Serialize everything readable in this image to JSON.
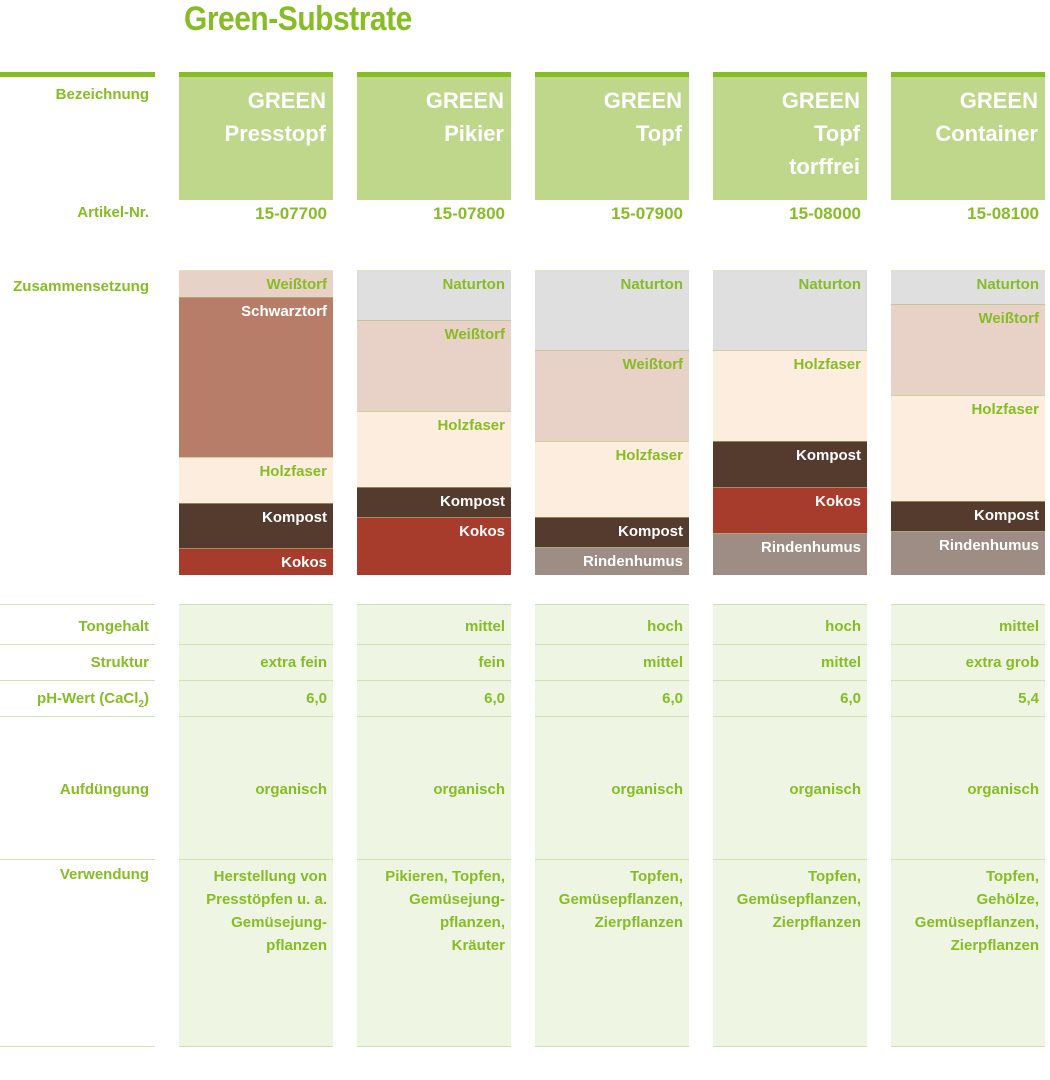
{
  "title": "Green-Substrate",
  "colors": {
    "brand_green": "#86bd24",
    "header_green": "#bfd78a",
    "property_bg": "#eef5e3",
    "Weißtorf": "#e8d1c6",
    "Schwarztorf": "#b87d69",
    "Naturton": "#dfdfdf",
    "Holzfaser": "#fdeddf",
    "Kompost": "#553b2d",
    "Kokos": "#a83c2c",
    "Rindenhumus": "#9d8d84"
  },
  "labels": {
    "bezeichnung": "Bezeichnung",
    "artikel": "Artikel-Nr.",
    "zusammensetzung": "Zusammensetzung",
    "tongehalt": "Tongehalt",
    "struktur": "Struktur",
    "ph_prefix": "pH-Wert (CaCl",
    "ph_sub": "2",
    "ph_suffix": ")",
    "aufduengung": "Aufdüngung",
    "verwendung": "Verwendung"
  },
  "products": [
    {
      "name_lines": [
        "GREEN",
        "Presstopf"
      ],
      "artikel": "15-07700",
      "composition": [
        {
          "name": "Weißtorf",
          "share": 0.086
        },
        {
          "name": "Schwarztorf",
          "share": 0.526
        },
        {
          "name": "Holzfaser",
          "share": 0.152
        },
        {
          "name": "Kompost",
          "share": 0.148
        },
        {
          "name": "Kokos",
          "share": 0.088
        }
      ],
      "tongehalt": "",
      "struktur": "extra fein",
      "ph": "6,0",
      "aufduengung": "organisch",
      "verwendung_lines": [
        "Herstellung von",
        "Presstöpfen u. a.",
        "Gemüsejung-",
        "pflanzen"
      ]
    },
    {
      "name_lines": [
        "GREEN",
        "Pikier"
      ],
      "artikel": "15-07800",
      "composition": [
        {
          "name": "Naturton",
          "share": 0.16
        },
        {
          "name": "Weißtorf",
          "share": 0.3
        },
        {
          "name": "Holzfaser",
          "share": 0.25
        },
        {
          "name": "Kompost",
          "share": 0.1
        },
        {
          "name": "Kokos",
          "share": 0.19
        }
      ],
      "tongehalt": "mittel",
      "struktur": "fein",
      "ph": "6,0",
      "aufduengung": "organisch",
      "verwendung_lines": [
        "Pikieren, Topfen,",
        "Gemüsejung-",
        "pflanzen,",
        "Kräuter"
      ]
    },
    {
      "name_lines": [
        "GREEN",
        "Topf"
      ],
      "artikel": "15-07900",
      "composition": [
        {
          "name": "Naturton",
          "share": 0.26
        },
        {
          "name": "Weißtorf",
          "share": 0.3
        },
        {
          "name": "Holzfaser",
          "share": 0.25
        },
        {
          "name": "Kompost",
          "share": 0.1
        },
        {
          "name": "Rindenhumus",
          "share": 0.09
        }
      ],
      "tongehalt": "hoch",
      "struktur": "mittel",
      "ph": "6,0",
      "aufduengung": "organisch",
      "verwendung_lines": [
        "Topfen,",
        "Gemüsepflanzen,",
        "Zierpflanzen"
      ]
    },
    {
      "name_lines": [
        "GREEN",
        "Topf",
        "torffrei"
      ],
      "artikel": "15-08000",
      "composition": [
        {
          "name": "Naturton",
          "share": 0.26
        },
        {
          "name": "Holzfaser",
          "share": 0.3
        },
        {
          "name": "Kompost",
          "share": 0.15
        },
        {
          "name": "Kokos",
          "share": 0.15
        },
        {
          "name": "Rindenhumus",
          "share": 0.14
        }
      ],
      "tongehalt": "hoch",
      "struktur": "mittel",
      "ph": "6,0",
      "aufduengung": "organisch",
      "verwendung_lines": [
        "Topfen,",
        "Gemüsepflanzen,",
        "Zierpflanzen"
      ]
    },
    {
      "name_lines": [
        "GREEN",
        "Container"
      ],
      "artikel": "15-08100",
      "composition": [
        {
          "name": "Naturton",
          "share": 0.11
        },
        {
          "name": "Weißtorf",
          "share": 0.3
        },
        {
          "name": "Holzfaser",
          "share": 0.35
        },
        {
          "name": "Kompost",
          "share": 0.1
        },
        {
          "name": "Rindenhumus",
          "share": 0.14
        }
      ],
      "tongehalt": "mittel",
      "struktur": "extra grob",
      "ph": "5,4",
      "aufduengung": "organisch",
      "verwendung_lines": [
        "Topfen,",
        "Gehölze,",
        "Gemüsepflanzen,",
        "Zierpflanzen"
      ]
    }
  ]
}
